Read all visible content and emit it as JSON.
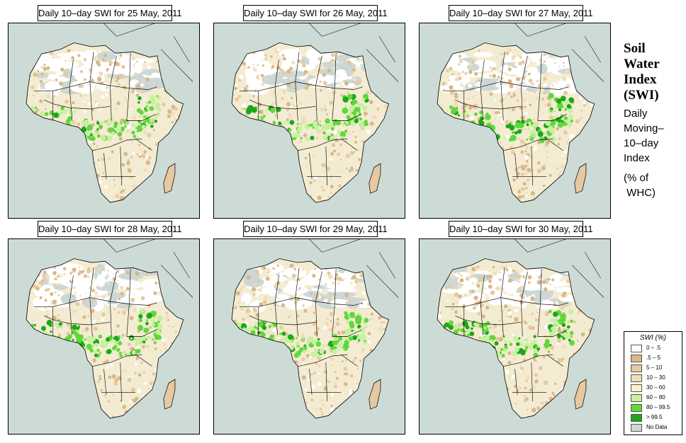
{
  "panels": [
    {
      "title": "Daily 10–day SWI for  25 May, 2011",
      "wet_shift": 0.0
    },
    {
      "title": "Daily 10–day SWI for  26 May, 2011",
      "wet_shift": 0.1
    },
    {
      "title": "Daily 10–day SWI for  27 May, 2011",
      "wet_shift": 0.3
    },
    {
      "title": "Daily 10–day SWI for  28 May, 2011",
      "wet_shift": 0.2
    },
    {
      "title": "Daily 10–day SWI for  29 May, 2011",
      "wet_shift": 0.15
    },
    {
      "title": "Daily 10–day SWI for  30 May, 2011",
      "wet_shift": 0.35
    }
  ],
  "side": {
    "title_lines": [
      "Soil",
      "Water",
      "Index",
      "(SWI)"
    ],
    "subtitle_lines": [
      "Daily",
      "Moving–",
      "10–day",
      "Index"
    ],
    "unit_lines": [
      "(% of",
      " WHC)"
    ]
  },
  "legend": {
    "title": "SWI (%)",
    "items": [
      {
        "label": "0 – .5",
        "color": "#ffffff"
      },
      {
        "label": ".5 – 5",
        "color": "#d9b88a"
      },
      {
        "label": "5 – 10",
        "color": "#e6c9a0"
      },
      {
        "label": "10 – 30",
        "color": "#f2ddbb"
      },
      {
        "label": "30 – 60",
        "color": "#f7f2c8"
      },
      {
        "label": "60 – 80",
        "color": "#c8f0a0"
      },
      {
        "label": "80 – 99.5",
        "color": "#5fd83a"
      },
      {
        "label": "> 99.5",
        "color": "#1aa81a"
      },
      {
        "label": "No Data",
        "color": "#cdd7d5"
      }
    ]
  },
  "colors": {
    "ocean": "#cddbd7",
    "land": "#f4ecd2",
    "desert": "#ffffff",
    "boundary": "#000000"
  }
}
